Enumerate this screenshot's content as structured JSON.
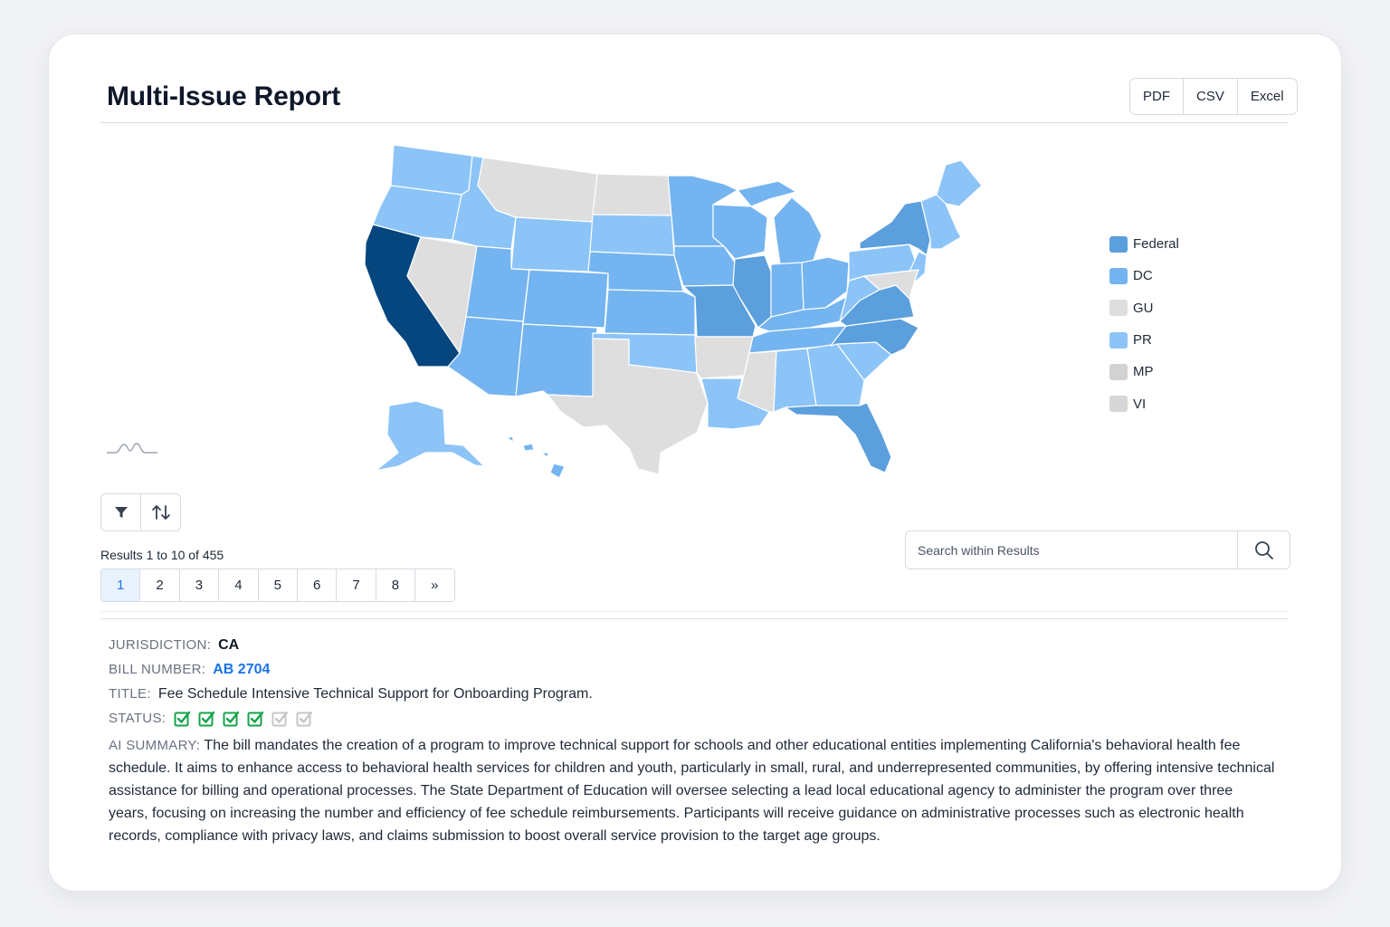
{
  "header": {
    "title": "Multi-Issue Report",
    "exports": [
      "PDF",
      "CSV",
      "Excel"
    ]
  },
  "map": {
    "states": [
      {
        "code": "WA",
        "category": "PR"
      },
      {
        "code": "OR",
        "category": "PR"
      },
      {
        "code": "CA",
        "category": "selected"
      },
      {
        "code": "NV",
        "category": "none"
      },
      {
        "code": "ID",
        "category": "PR"
      },
      {
        "code": "MT",
        "category": "none"
      },
      {
        "code": "WY",
        "category": "PR"
      },
      {
        "code": "UT",
        "category": "DC"
      },
      {
        "code": "AZ",
        "category": "DC"
      },
      {
        "code": "CO",
        "category": "DC"
      },
      {
        "code": "NM",
        "category": "DC"
      },
      {
        "code": "ND",
        "category": "none"
      },
      {
        "code": "SD",
        "category": "PR"
      },
      {
        "code": "NE",
        "category": "DC"
      },
      {
        "code": "KS",
        "category": "DC"
      },
      {
        "code": "OK",
        "category": "PR"
      },
      {
        "code": "TX",
        "category": "none"
      },
      {
        "code": "MN",
        "category": "DC"
      },
      {
        "code": "IA",
        "category": "DC"
      },
      {
        "code": "MO",
        "category": "Federal"
      },
      {
        "code": "AR",
        "category": "none"
      },
      {
        "code": "LA",
        "category": "PR"
      },
      {
        "code": "WI",
        "category": "DC"
      },
      {
        "code": "IL",
        "category": "Federal"
      },
      {
        "code": "MI",
        "category": "DC"
      },
      {
        "code": "IN",
        "category": "DC"
      },
      {
        "code": "OH",
        "category": "DC"
      },
      {
        "code": "KY",
        "category": "DC"
      },
      {
        "code": "TN",
        "category": "DC"
      },
      {
        "code": "MS",
        "category": "none"
      },
      {
        "code": "AL",
        "category": "PR"
      },
      {
        "code": "GA",
        "category": "PR"
      },
      {
        "code": "FL",
        "category": "Federal"
      },
      {
        "code": "SC",
        "category": "PR"
      },
      {
        "code": "NC",
        "category": "Federal"
      },
      {
        "code": "VA",
        "category": "Federal"
      },
      {
        "code": "WV",
        "category": "PR"
      },
      {
        "code": "PA",
        "category": "PR"
      },
      {
        "code": "NY",
        "category": "Federal"
      },
      {
        "code": "NJ",
        "category": "PR"
      },
      {
        "code": "NE-states",
        "category": "PR"
      },
      {
        "code": "ME",
        "category": "PR"
      },
      {
        "code": "AK",
        "category": "PR"
      },
      {
        "code": "HI",
        "category": "DC"
      }
    ]
  },
  "legend": [
    {
      "label": "Federal",
      "color": "#5b9fdc"
    },
    {
      "label": "DC",
      "color": "#74b4f0"
    },
    {
      "label": "GU",
      "color": "#dedede"
    },
    {
      "label": "PR",
      "color": "#8cc4f8"
    },
    {
      "label": "MP",
      "color": "#d2d2d2"
    },
    {
      "label": "VI",
      "color": "#d6d6d6"
    }
  ],
  "colors": {
    "selected": "#06467f",
    "none": "#dedede",
    "Federal": "#5b9fdc",
    "DC": "#74b4f0",
    "PR": "#8cc4f8",
    "accent": "#1a73e8",
    "check_active": "#16a34a",
    "check_inactive": "#c7c7c7"
  },
  "toolbar": {
    "filter_icon": "filter-icon",
    "sort_icon": "sort-icon"
  },
  "results": {
    "count_text": "Results 1 to 10 of 455",
    "pages": [
      "1",
      "2",
      "3",
      "4",
      "5",
      "6",
      "7",
      "8",
      "»"
    ],
    "active_page": "1"
  },
  "search": {
    "placeholder": "Search within Results"
  },
  "record": {
    "jurisdiction_label": "JURISDICTION:",
    "jurisdiction": "CA",
    "bill_number_label": "BILL NUMBER:",
    "bill_number": "AB 2704",
    "title_label": "TITLE:",
    "title": "Fee Schedule Intensive Technical Support for Onboarding Program.",
    "status_label": "STATUS:",
    "status_steps": [
      true,
      true,
      true,
      true,
      false,
      false
    ],
    "summary_label": "AI SUMMARY:",
    "summary": "The bill mandates the creation of a program to improve technical support for schools and other educational entities implementing California's behavioral health fee schedule. It aims to enhance access to behavioral health services for children and youth, particularly in small, rural, and underrepresented communities, by offering intensive technical assistance for billing and operational processes. The State Department of Education will oversee selecting a lead local educational agency to administer the program over three years, focusing on increasing the number and efficiency of fee schedule reimbursements. Participants will receive guidance on administrative processes such as electronic health records, compliance with privacy laws, and claims submission to boost overall service provision to the target age groups."
  }
}
